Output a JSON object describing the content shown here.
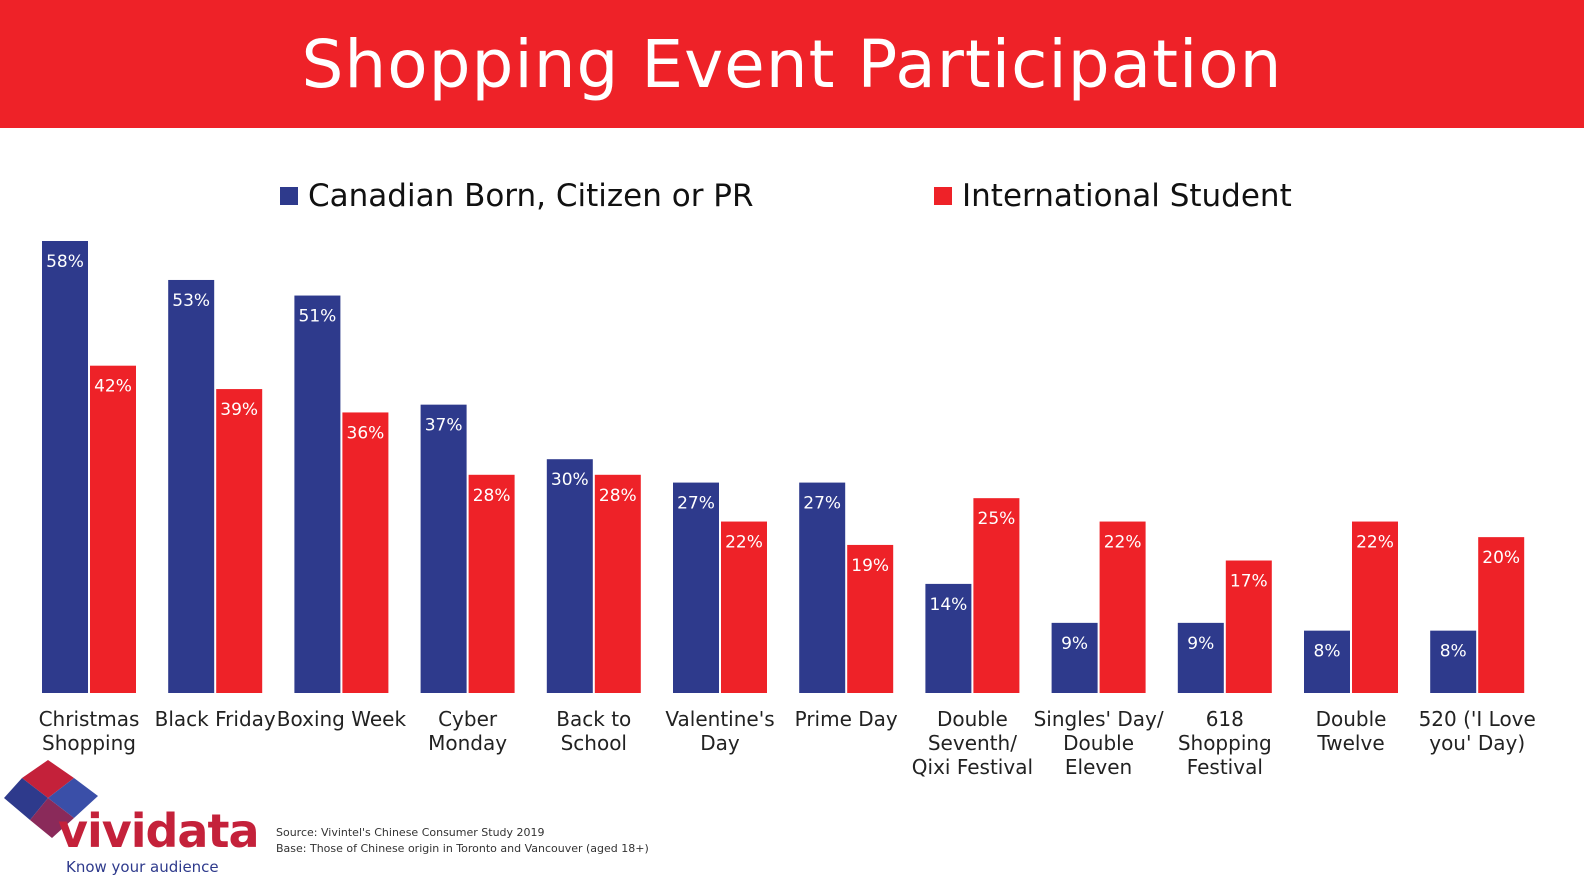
{
  "header": {
    "title": "Shopping Event Participation"
  },
  "colors": {
    "banner": "#ee2228",
    "series1": "#2e3a8c",
    "series2": "#ee2228"
  },
  "chart_data": {
    "type": "bar",
    "title": "Shopping Event Participation",
    "categories": [
      [
        "Christmas",
        "Shopping"
      ],
      [
        "Black Friday"
      ],
      [
        "Boxing Week"
      ],
      [
        "Cyber",
        "Monday"
      ],
      [
        "Back to",
        "School"
      ],
      [
        "Valentine's",
        "Day"
      ],
      [
        "Prime Day"
      ],
      [
        "Double",
        "Seventh/",
        "Qixi Festival"
      ],
      [
        "Singles' Day/",
        "Double",
        "Eleven"
      ],
      [
        "618",
        "Shopping",
        "Festival"
      ],
      [
        "Double",
        "Twelve"
      ],
      [
        "520 ('I Love",
        "you' Day)"
      ]
    ],
    "series": [
      {
        "name": "Canadian Born, Citizen or PR",
        "color": "#2e3a8c",
        "values": [
          58,
          53,
          51,
          37,
          30,
          27,
          27,
          14,
          9,
          9,
          8,
          8
        ]
      },
      {
        "name": "International Student",
        "color": "#ee2228",
        "values": [
          42,
          39,
          36,
          28,
          28,
          22,
          19,
          25,
          22,
          17,
          22,
          20
        ]
      }
    ],
    "value_suffix": "%",
    "ylim": [
      0,
      60
    ],
    "grid": false,
    "legend": "top"
  },
  "logo": {
    "wordmark": "vividata",
    "tagline": "Know your audience"
  },
  "footnote": {
    "source": "Source: Vivintel's Chinese Consumer Study 2019",
    "base": "Base: Those of Chinese origin in Toronto and Vancouver (aged 18+)"
  }
}
